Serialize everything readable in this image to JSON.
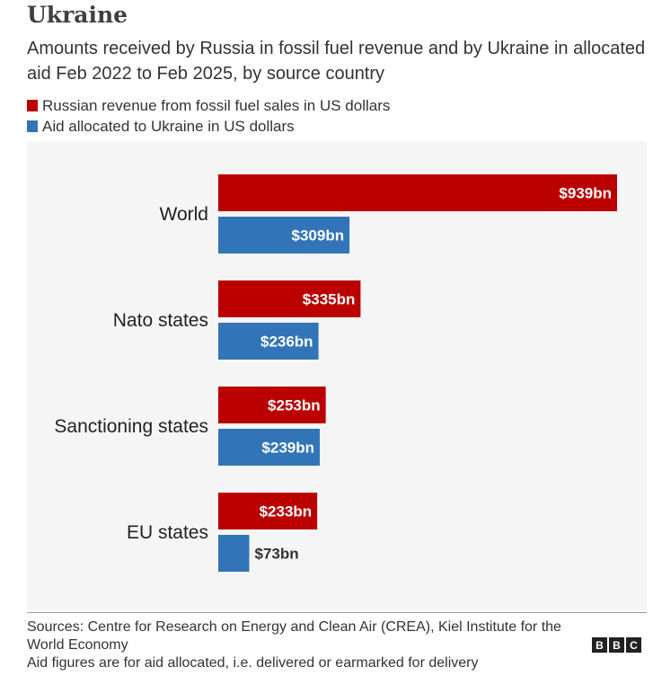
{
  "header": {
    "title": "Ukraine",
    "subtitle": "Amounts received by Russia in fossil fuel revenue and by Ukraine in allocated aid Feb 2022 to Feb 2025, by source country"
  },
  "chart_data": {
    "type": "bar",
    "orientation": "horizontal",
    "categories": [
      "World",
      "Nato states",
      "Sanctioning states",
      "EU states"
    ],
    "series": [
      {
        "name": "Russian revenue from fossil fuel sales in US dollars",
        "color": "#bb0000",
        "values": [
          939,
          335,
          253,
          233
        ],
        "labels": [
          "$939bn",
          "$335bn",
          "$253bn",
          "$233bn"
        ]
      },
      {
        "name": "Aid allocated to Ukraine in US dollars",
        "color": "#3274b8",
        "values": [
          309,
          236,
          239,
          73
        ],
        "labels": [
          "$309bn",
          "$236bn",
          "$239bn",
          "$73bn"
        ]
      }
    ],
    "xlim": [
      0,
      939
    ],
    "grid": false,
    "legend": "top-left"
  },
  "footer": {
    "sources": "Sources: Centre for Research on Energy and Clean Air (CREA), Kiel Institute for the World Economy",
    "note": "Aid figures are for aid allocated, i.e. delivered or earmarked for delivery",
    "logo_letters": [
      "B",
      "B",
      "C"
    ]
  }
}
